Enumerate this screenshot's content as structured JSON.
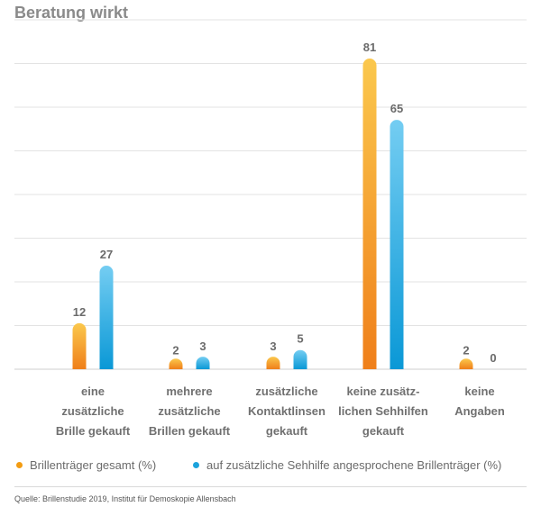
{
  "title": "Beratung wirkt",
  "chart_data": {
    "type": "bar",
    "title": "Beratung wirkt",
    "categories": [
      "eine\nzusätzliche\nBrille gekauft",
      "mehrere\nzusätzliche\nBrillen gekauft",
      "zusätzliche\nKontaktlinsen\ngekauft",
      "keine zusätz-\nlichen Sehhilfen\ngekauft",
      "keine\nAngaben"
    ],
    "series": [
      {
        "name": "Brillenträger gesamt (%)",
        "values": [
          12,
          2,
          3,
          81,
          2
        ],
        "color": "#f39c12"
      },
      {
        "name": "auf zusätzliche Sehhilfe angesprochene Brillenträger (%)",
        "values": [
          27,
          3,
          5,
          65,
          0
        ],
        "color": "#1ca3dc"
      }
    ],
    "ylim": [
      0,
      81
    ],
    "grid": true,
    "legend": "bottom",
    "xlabel": "",
    "ylabel": ""
  },
  "source": "Quelle: Brillenstudie 2019, Institut für Demoskopie Allensbach"
}
